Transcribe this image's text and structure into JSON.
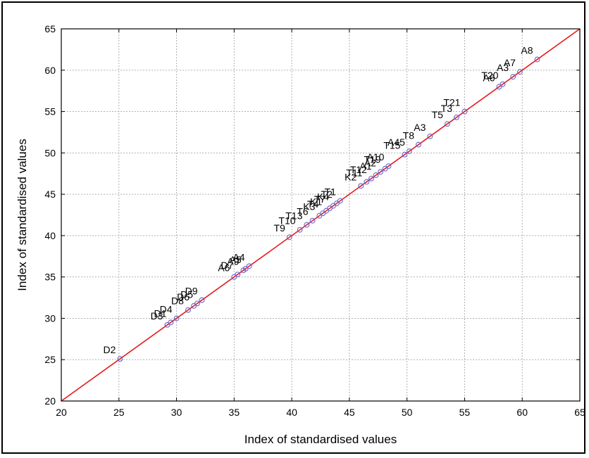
{
  "chart_data": {
    "type": "scatter",
    "title": "",
    "xlabel": "Index of standardised values",
    "ylabel": "Index of standardised values",
    "xlim": [
      20,
      65
    ],
    "ylim": [
      20,
      65
    ],
    "xticks": [
      "20",
      "25",
      "30",
      "35",
      "40",
      "45",
      "50",
      "55",
      "60",
      "65"
    ],
    "yticks": [
      "20",
      "25",
      "30",
      "35",
      "40",
      "45",
      "50",
      "55",
      "60",
      "65"
    ],
    "grid": true,
    "fit_line": {
      "x": [
        20,
        65
      ],
      "y": [
        20,
        65
      ],
      "color": "#e41a1c"
    },
    "marker_color": "#6666cc",
    "points": [
      {
        "label": "D2",
        "x": 25.1,
        "y": 25.1
      },
      {
        "label": "D3",
        "x": 29.2,
        "y": 29.2
      },
      {
        "label": "D1",
        "x": 29.5,
        "y": 29.5
      },
      {
        "label": "D4",
        "x": 30.0,
        "y": 30.0
      },
      {
        "label": "D8",
        "x": 31.0,
        "y": 31.0
      },
      {
        "label": "D6",
        "x": 31.5,
        "y": 31.5
      },
      {
        "label": "D5",
        "x": 31.8,
        "y": 31.8
      },
      {
        "label": "D9",
        "x": 32.2,
        "y": 32.2
      },
      {
        "label": "A6",
        "x": 35.0,
        "y": 35.0
      },
      {
        "label": "D7",
        "x": 35.3,
        "y": 35.3
      },
      {
        "label": "A9",
        "x": 35.8,
        "y": 35.8
      },
      {
        "label": "A5",
        "x": 36.0,
        "y": 36.0
      },
      {
        "label": "A4",
        "x": 36.3,
        "y": 36.3
      },
      {
        "label": "T9",
        "x": 39.8,
        "y": 39.8
      },
      {
        "label": "T10",
        "x": 40.7,
        "y": 40.7
      },
      {
        "label": "T13",
        "x": 41.3,
        "y": 41.3
      },
      {
        "label": "T6",
        "x": 41.8,
        "y": 41.8
      },
      {
        "label": "K3",
        "x": 42.4,
        "y": 42.4
      },
      {
        "label": "T4",
        "x": 42.7,
        "y": 42.7
      },
      {
        "label": "K1",
        "x": 43.0,
        "y": 43.0
      },
      {
        "label": "T7",
        "x": 43.3,
        "y": 43.3
      },
      {
        "label": "K4",
        "x": 43.6,
        "y": 43.6
      },
      {
        "label": "T2",
        "x": 43.9,
        "y": 43.9
      },
      {
        "label": "T1",
        "x": 44.2,
        "y": 44.2
      },
      {
        "label": "K2",
        "x": 46.0,
        "y": 46.0
      },
      {
        "label": "T11",
        "x": 46.5,
        "y": 46.5
      },
      {
        "label": "T12",
        "x": 46.9,
        "y": 46.9
      },
      {
        "label": "A1",
        "x": 47.3,
        "y": 47.3
      },
      {
        "label": "A2",
        "x": 47.7,
        "y": 47.7
      },
      {
        "label": "T19",
        "x": 48.1,
        "y": 48.1
      },
      {
        "label": "A10",
        "x": 48.4,
        "y": 48.4
      },
      {
        "label": "T15",
        "x": 49.8,
        "y": 49.8
      },
      {
        "label": "A45",
        "x": 50.2,
        "y": 50.2
      },
      {
        "label": "T8",
        "x": 51.0,
        "y": 51.0
      },
      {
        "label": "A3",
        "x": 52.0,
        "y": 52.0
      },
      {
        "label": "T5",
        "x": 53.5,
        "y": 53.5
      },
      {
        "label": "T3",
        "x": 54.3,
        "y": 54.3
      },
      {
        "label": "T21",
        "x": 55.0,
        "y": 55.0
      },
      {
        "label": "A6",
        "x": 58.0,
        "y": 58.0
      },
      {
        "label": "T20",
        "x": 58.3,
        "y": 58.3
      },
      {
        "label": "A3",
        "x": 59.2,
        "y": 59.2
      },
      {
        "label": "A7",
        "x": 59.8,
        "y": 59.8
      },
      {
        "label": "A8",
        "x": 61.3,
        "y": 61.3
      }
    ]
  }
}
